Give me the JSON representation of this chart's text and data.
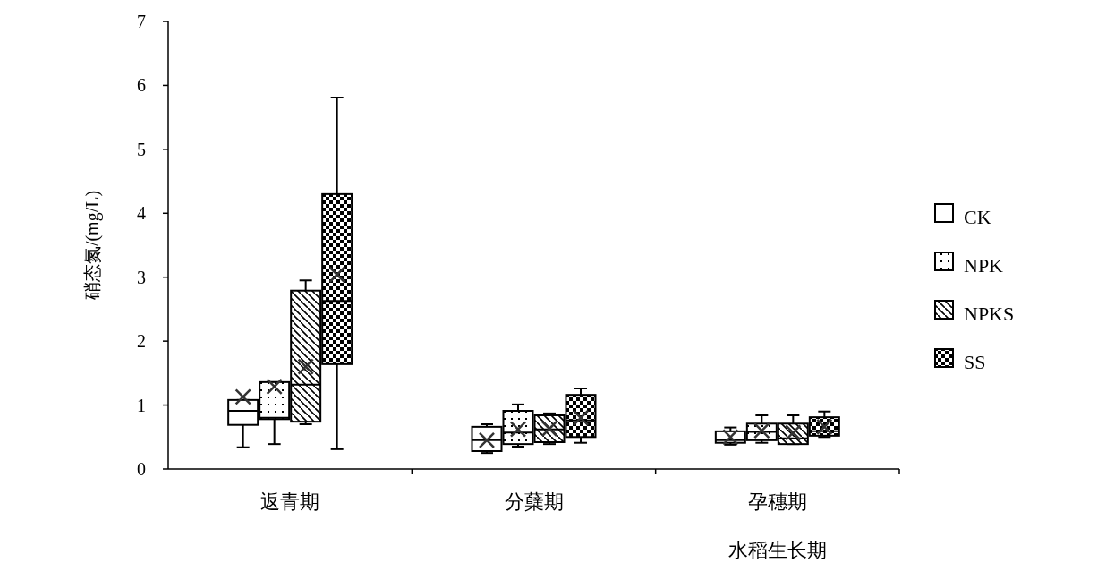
{
  "chart_data": {
    "type": "box",
    "ylabel": "硝态氮/(mg/L)",
    "xlabel": "水稻生长期",
    "categories": [
      "返青期",
      "分蘖期",
      "孕穗期"
    ],
    "ylim": [
      0,
      7
    ],
    "yticks": [
      0,
      1,
      2,
      3,
      4,
      5,
      6,
      7
    ],
    "grid": false,
    "legend": "right",
    "series": [
      {
        "name": "CK",
        "color": "#000000",
        "boxes": [
          {
            "low": 0.34,
            "q1": 0.69,
            "median": 0.91,
            "q3": 1.08,
            "high": 1.08,
            "mean": 1.13
          },
          {
            "low": 0.25,
            "q1": 0.28,
            "median": 0.45,
            "q3": 0.66,
            "high": 0.7,
            "mean": 0.45
          },
          {
            "low": 0.38,
            "q1": 0.41,
            "median": 0.45,
            "q3": 0.59,
            "high": 0.65,
            "mean": 0.5
          }
        ]
      },
      {
        "name": "NPK",
        "color": "#000000",
        "boxes": [
          {
            "low": 0.39,
            "q1": 0.78,
            "median": 0.8,
            "q3": 1.36,
            "high": 1.36,
            "mean": 1.29
          },
          {
            "low": 0.35,
            "q1": 0.39,
            "median": 0.57,
            "q3": 0.91,
            "high": 1.01,
            "mean": 0.62
          },
          {
            "low": 0.41,
            "q1": 0.45,
            "median": 0.58,
            "q3": 0.71,
            "high": 0.84,
            "mean": 0.6
          }
        ]
      },
      {
        "name": "NPKS",
        "color": "#000000",
        "boxes": [
          {
            "low": 0.7,
            "q1": 0.74,
            "median": 1.32,
            "q3": 2.79,
            "high": 2.95,
            "mean": 1.6
          },
          {
            "low": 0.39,
            "q1": 0.42,
            "median": 0.62,
            "q3": 0.84,
            "high": 0.87,
            "mean": 0.63
          },
          {
            "low": 0.39,
            "q1": 0.39,
            "median": 0.48,
            "q3": 0.71,
            "high": 0.84,
            "mean": 0.57
          }
        ]
      },
      {
        "name": "SS",
        "color": "#000000",
        "boxes": [
          {
            "low": 0.31,
            "q1": 1.64,
            "median": 2.63,
            "q3": 4.3,
            "high": 5.81,
            "mean": 3.04
          },
          {
            "low": 0.41,
            "q1": 0.5,
            "median": 0.76,
            "q3": 1.16,
            "high": 1.26,
            "mean": 0.8
          },
          {
            "low": 0.5,
            "q1": 0.52,
            "median": 0.59,
            "q3": 0.81,
            "high": 0.9,
            "mean": 0.66
          }
        ]
      }
    ]
  }
}
